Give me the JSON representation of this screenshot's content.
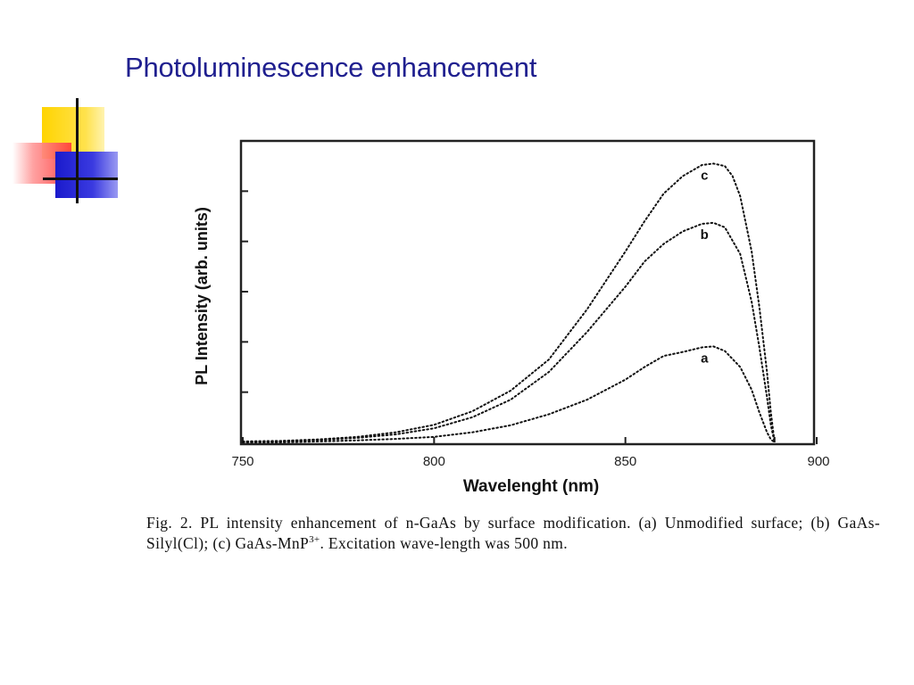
{
  "slide": {
    "title": "Photoluminescence enhancement"
  },
  "logo": {
    "icon": "overlapping-squares-crosshair-icon",
    "colors": {
      "yellow": "#ffd400",
      "red": "#ff3b3b",
      "blue": "#2a2ad6",
      "line": "#111111"
    }
  },
  "chart_data": {
    "type": "line",
    "xlabel": "Wavelenght (nm)",
    "ylabel": "PL Intensity (arb. units)",
    "xlim": [
      750,
      900
    ],
    "ylim": [
      0,
      6
    ],
    "x_ticks": [
      750,
      800,
      850,
      900
    ],
    "x_tick_labels": [
      "750",
      "800",
      "850",
      "900"
    ],
    "y_ticks": [
      1,
      2,
      3,
      4,
      5
    ],
    "y_tick_labels": [],
    "grid": false,
    "line_style": "dotted",
    "series": [
      {
        "name": "a",
        "x": [
          750,
          760,
          770,
          780,
          790,
          800,
          810,
          820,
          830,
          840,
          850,
          855,
          860,
          865,
          870,
          873,
          876,
          880,
          883,
          885,
          887,
          888,
          889
        ],
        "y": [
          0.0,
          0.0,
          0.02,
          0.04,
          0.07,
          0.11,
          0.2,
          0.34,
          0.56,
          0.85,
          1.25,
          1.5,
          1.72,
          1.8,
          1.89,
          1.91,
          1.82,
          1.5,
          1.05,
          0.6,
          0.2,
          0.06,
          0.0
        ]
      },
      {
        "name": "b",
        "x": [
          750,
          760,
          770,
          780,
          790,
          800,
          810,
          820,
          830,
          840,
          850,
          855,
          860,
          865,
          870,
          873,
          876,
          880,
          883,
          885,
          887,
          888,
          889
        ],
        "y": [
          0.0,
          0.02,
          0.05,
          0.09,
          0.16,
          0.28,
          0.5,
          0.85,
          1.4,
          2.2,
          3.1,
          3.6,
          3.95,
          4.2,
          4.35,
          4.37,
          4.28,
          3.75,
          2.8,
          1.9,
          0.9,
          0.35,
          0.0
        ]
      },
      {
        "name": "c",
        "x": [
          750,
          760,
          770,
          780,
          790,
          800,
          810,
          820,
          830,
          840,
          850,
          855,
          860,
          865,
          870,
          873,
          876,
          878,
          880,
          883,
          885,
          887,
          888,
          889
        ],
        "y": [
          0.02,
          0.03,
          0.06,
          0.11,
          0.2,
          0.35,
          0.62,
          1.03,
          1.65,
          2.65,
          3.8,
          4.4,
          4.95,
          5.3,
          5.52,
          5.55,
          5.5,
          5.3,
          4.9,
          3.8,
          2.7,
          1.4,
          0.6,
          0.0
        ]
      }
    ]
  },
  "caption": {
    "prefix": "Fig. 2. PL intensity enhancement of n-GaAs by surface modification. (a) Unmodified surface; (b) GaAs-Silyl(Cl); (c) GaAs-MnP",
    "superscript": "3+",
    "suffix": ". Excitation wave-length was 500 nm."
  }
}
